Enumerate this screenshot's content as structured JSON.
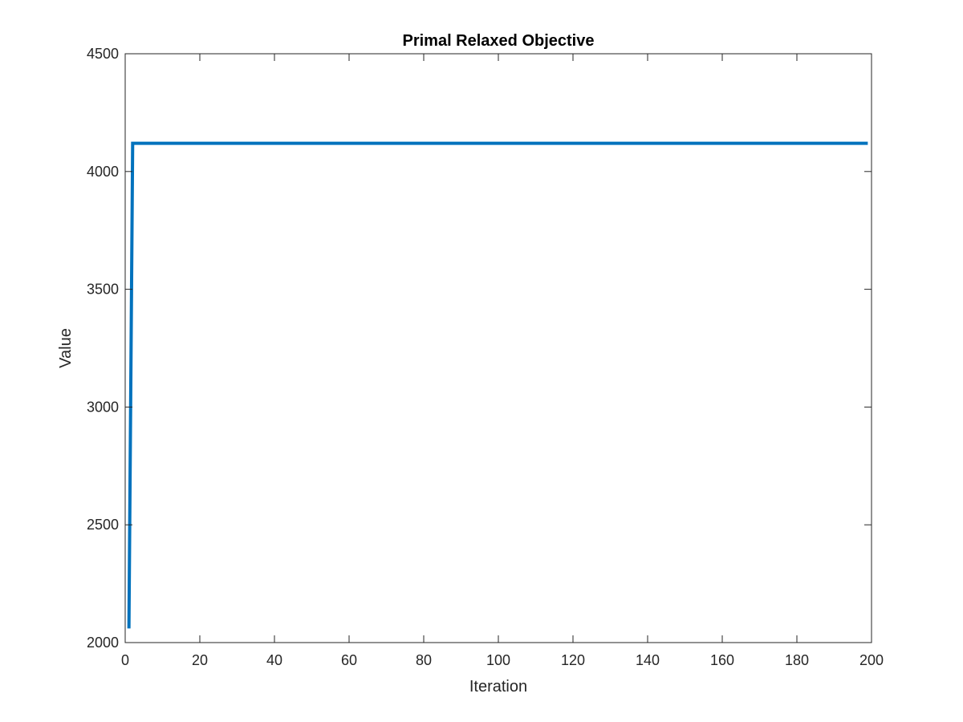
{
  "chart_data": {
    "type": "line",
    "title": "Primal Relaxed Objective",
    "xlabel": "Iteration",
    "ylabel": "Value",
    "xlim": [
      0,
      200
    ],
    "ylim": [
      2000,
      4500
    ],
    "xticks": [
      0,
      20,
      40,
      60,
      80,
      100,
      120,
      140,
      160,
      180,
      200
    ],
    "yticks": [
      2000,
      2500,
      3000,
      3500,
      4000,
      4500
    ],
    "grid": false,
    "box": true,
    "series": [
      {
        "color": "#0072BD",
        "x": [
          1,
          2,
          3,
          4,
          5,
          10,
          20,
          50,
          100,
          150,
          199
        ],
        "y": [
          2060,
          4120,
          4120,
          4120,
          4120,
          4120,
          4120,
          4120,
          4120,
          4120,
          4120
        ]
      }
    ]
  }
}
